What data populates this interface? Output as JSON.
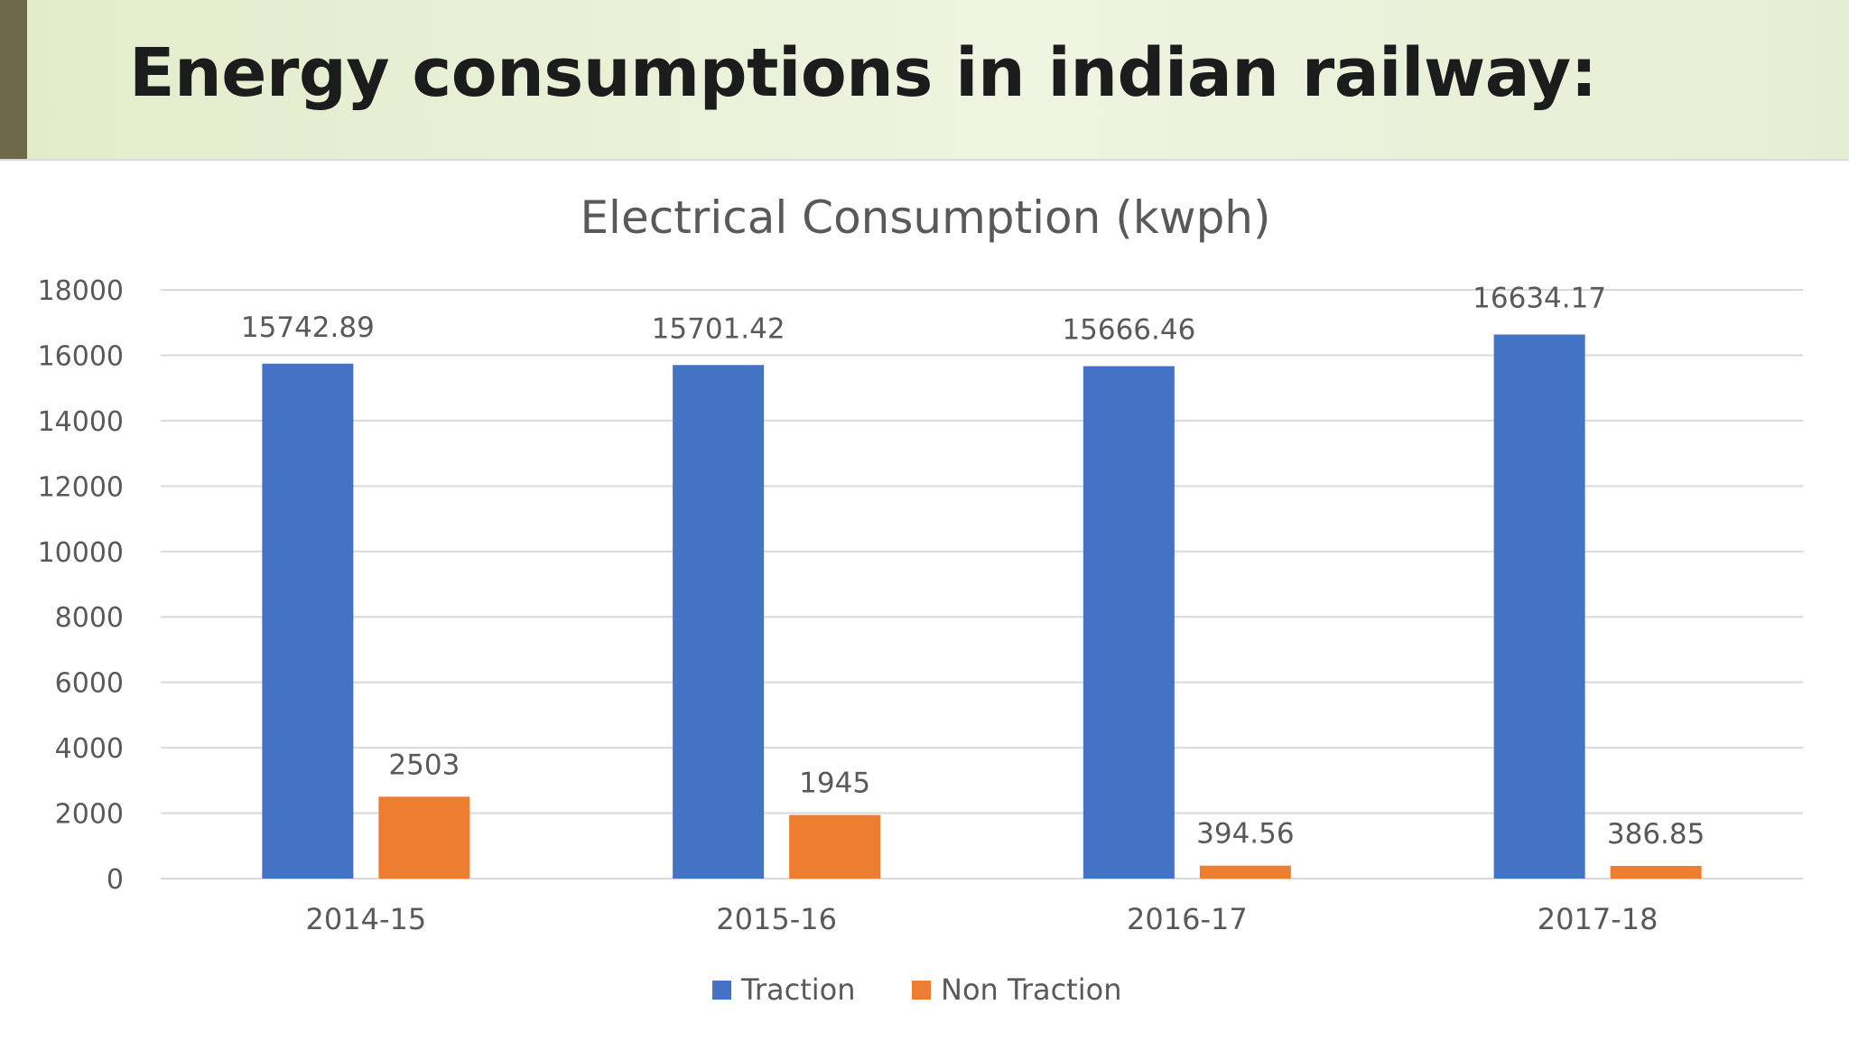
{
  "slide": {
    "title": "Energy consumptions in indian railway:"
  },
  "colors": {
    "traction": "#4472c4",
    "non_traction": "#ed7d31",
    "gridline": "#d9d9d9",
    "axis_text": "#595959"
  },
  "chart_data": {
    "type": "bar",
    "title": "Electrical Consumption (kwph)",
    "categories": [
      "2014-15",
      "2015-16",
      "2016-17",
      "2017-18"
    ],
    "series": [
      {
        "name": "Traction",
        "values": [
          15742.89,
          15701.42,
          15666.46,
          16634.17
        ],
        "labels": [
          "15742.89",
          "15701.42",
          "15666.46",
          "16634.17"
        ]
      },
      {
        "name": "Non Traction",
        "values": [
          2503,
          1945,
          394.56,
          386.85
        ],
        "labels": [
          "2503",
          "1945",
          "394.56",
          "386.85"
        ]
      }
    ],
    "ylim": [
      0,
      18000
    ],
    "yticks": [
      "0",
      "2000",
      "4000",
      "6000",
      "8000",
      "10000",
      "12000",
      "14000",
      "16000",
      "18000"
    ],
    "grid": true,
    "legend": "bottom-center",
    "xlabel": "",
    "ylabel": ""
  }
}
